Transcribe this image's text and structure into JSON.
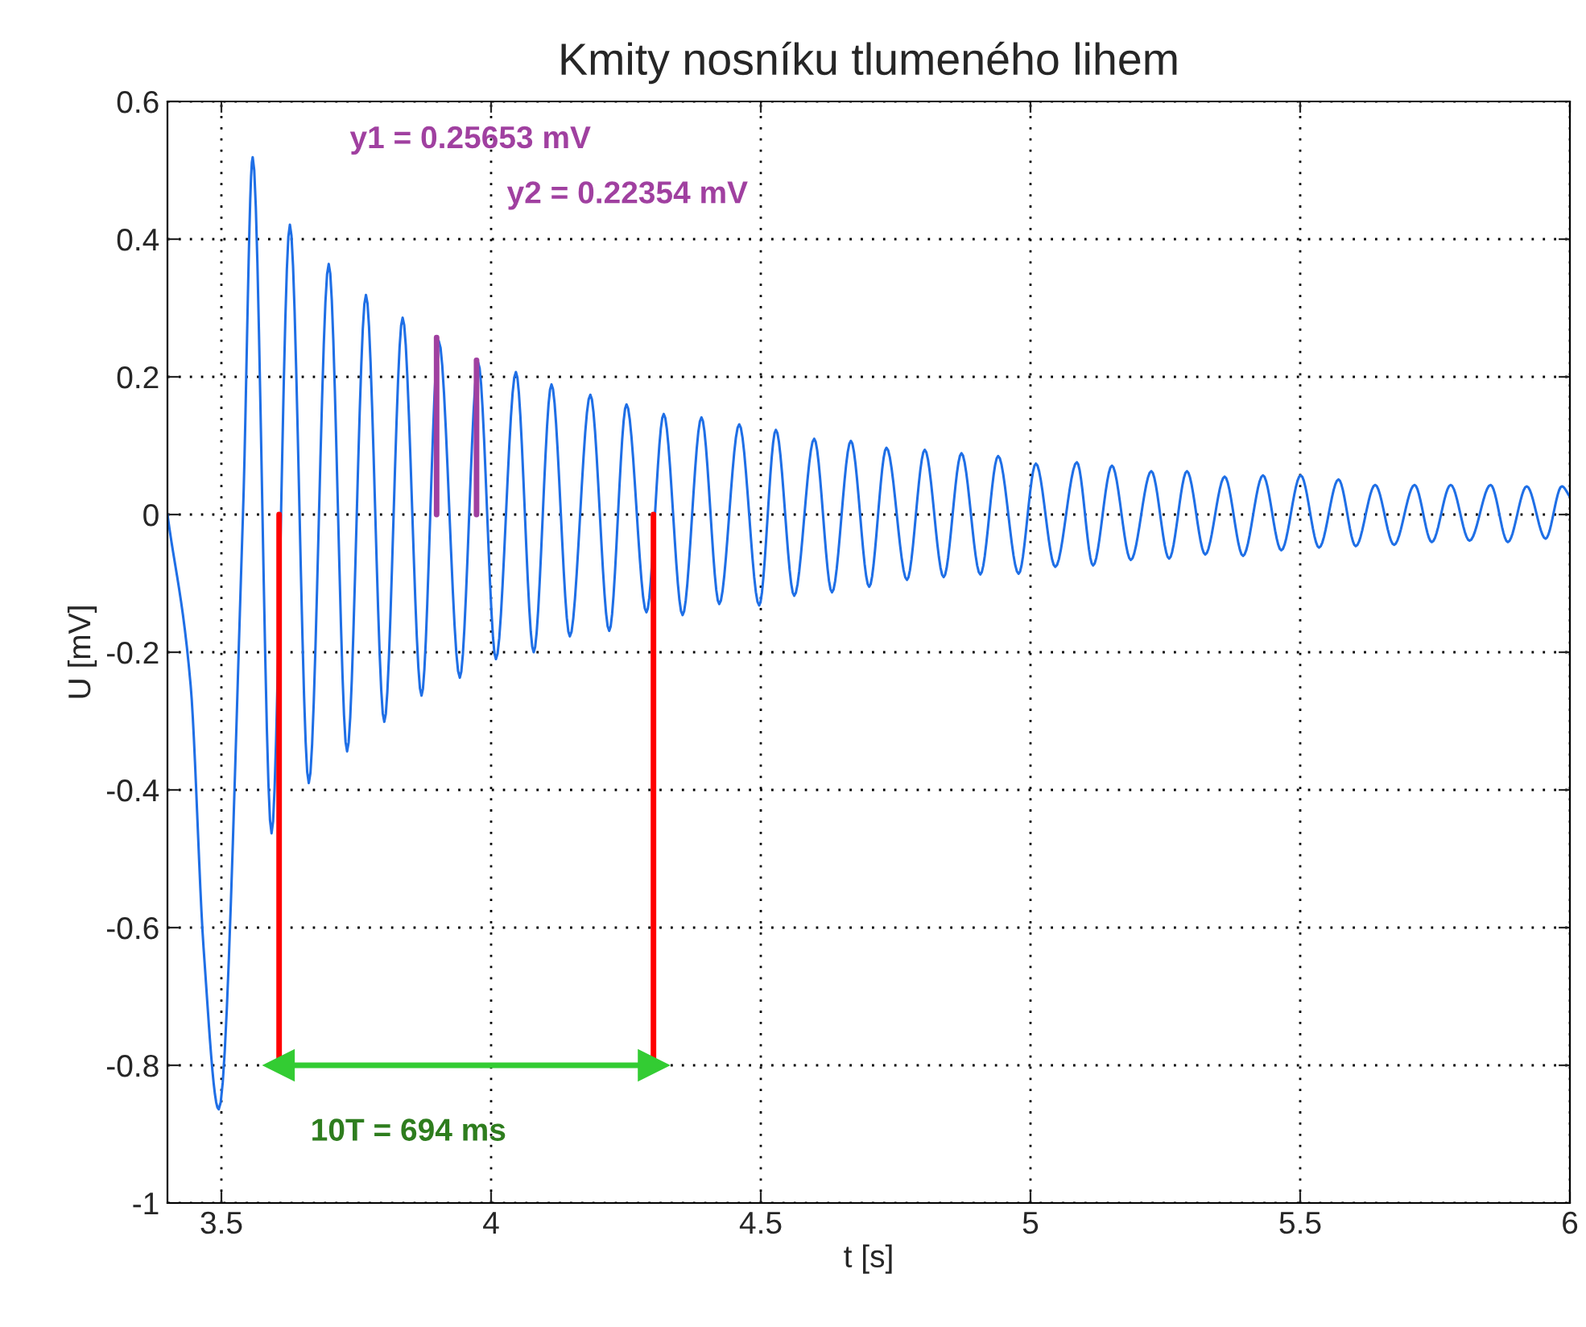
{
  "chart_data": {
    "type": "line",
    "title": "Kmity nosníku tlumeného lihem",
    "xlabel": "t [s]",
    "ylabel": "U [mV]",
    "series": [
      {
        "color": "#1f6fe6",
        "x": [
          3.4,
          3.443,
          3.467,
          3.495,
          3.54,
          3.558,
          3.593,
          3.627,
          3.662,
          3.699,
          3.733,
          3.768,
          3.802,
          3.836,
          3.871,
          3.903,
          3.942,
          3.976,
          4.009,
          4.046,
          4.079,
          4.112,
          4.146,
          4.184,
          4.219,
          4.251,
          4.288,
          4.32,
          4.355,
          4.39,
          4.423,
          4.46,
          4.497,
          4.528,
          4.562,
          4.599,
          4.632,
          4.667,
          4.701,
          4.733,
          4.771,
          4.804,
          4.839,
          4.872,
          4.907,
          4.94,
          4.978,
          5.01,
          5.046,
          5.086,
          5.116,
          5.151,
          5.186,
          5.224,
          5.257,
          5.29,
          5.324,
          5.36,
          5.394,
          5.431,
          5.465,
          5.501,
          5.535,
          5.571,
          5.603,
          5.639,
          5.674,
          5.712,
          5.744,
          5.779,
          5.814,
          5.853,
          5.885,
          5.92,
          5.955,
          5.985,
          6.0
        ],
        "values": [
          0.0,
          -0.248,
          -0.63,
          -0.864,
          0.0,
          0.519,
          -0.463,
          0.421,
          -0.39,
          0.364,
          -0.344,
          0.319,
          -0.301,
          0.286,
          -0.263,
          0.252,
          -0.237,
          0.221,
          -0.21,
          0.207,
          -0.2,
          0.189,
          -0.177,
          0.174,
          -0.169,
          0.16,
          -0.142,
          0.146,
          -0.146,
          0.141,
          -0.13,
          0.131,
          -0.132,
          0.123,
          -0.118,
          0.11,
          -0.113,
          0.107,
          -0.105,
          0.097,
          -0.095,
          0.094,
          -0.091,
          0.089,
          -0.087,
          0.085,
          -0.086,
          0.074,
          -0.076,
          0.076,
          -0.074,
          0.071,
          -0.066,
          0.063,
          -0.064,
          0.063,
          -0.058,
          0.055,
          -0.06,
          0.057,
          -0.052,
          0.057,
          -0.048,
          0.051,
          -0.046,
          0.043,
          -0.044,
          0.043,
          -0.04,
          0.043,
          -0.038,
          0.043,
          -0.04,
          0.041,
          -0.035,
          0.041,
          0.026
        ]
      },
      {
        "color": "#a040a0",
        "x": [
          3.899,
          3.899
        ],
        "values": [
          0,
          0.257
        ]
      },
      {
        "color": "#a040a0",
        "x": [
          3.973,
          3.973
        ],
        "values": [
          0,
          0.224
        ]
      },
      {
        "color": "#ff0000",
        "x": [
          3.607,
          3.607
        ],
        "values": [
          0,
          -0.8
        ]
      },
      {
        "color": "#ff0000",
        "x": [
          4.301,
          4.301
        ],
        "values": [
          0,
          -0.8
        ]
      },
      {
        "color": "#33cc33",
        "x": [
          3.607,
          4.301
        ],
        "values": [
          -0.8,
          -0.8
        ],
        "marker": "triangle"
      }
    ],
    "annotations": [
      "y1 = 0.25653 mV",
      "y2 = 0.22354 mV",
      "10T = 694 ms"
    ],
    "xlim": [
      3.4,
      6
    ],
    "xticks": [
      3.5,
      4,
      4.5,
      5,
      5.5,
      6
    ],
    "ylim": [
      -1,
      0.6
    ],
    "yticks": [
      -1,
      -0.8,
      -0.6,
      -0.4,
      -0.2,
      0,
      0.2,
      0.4,
      0.6
    ],
    "grid": true,
    "line_style": "solid",
    "marker": "none"
  }
}
